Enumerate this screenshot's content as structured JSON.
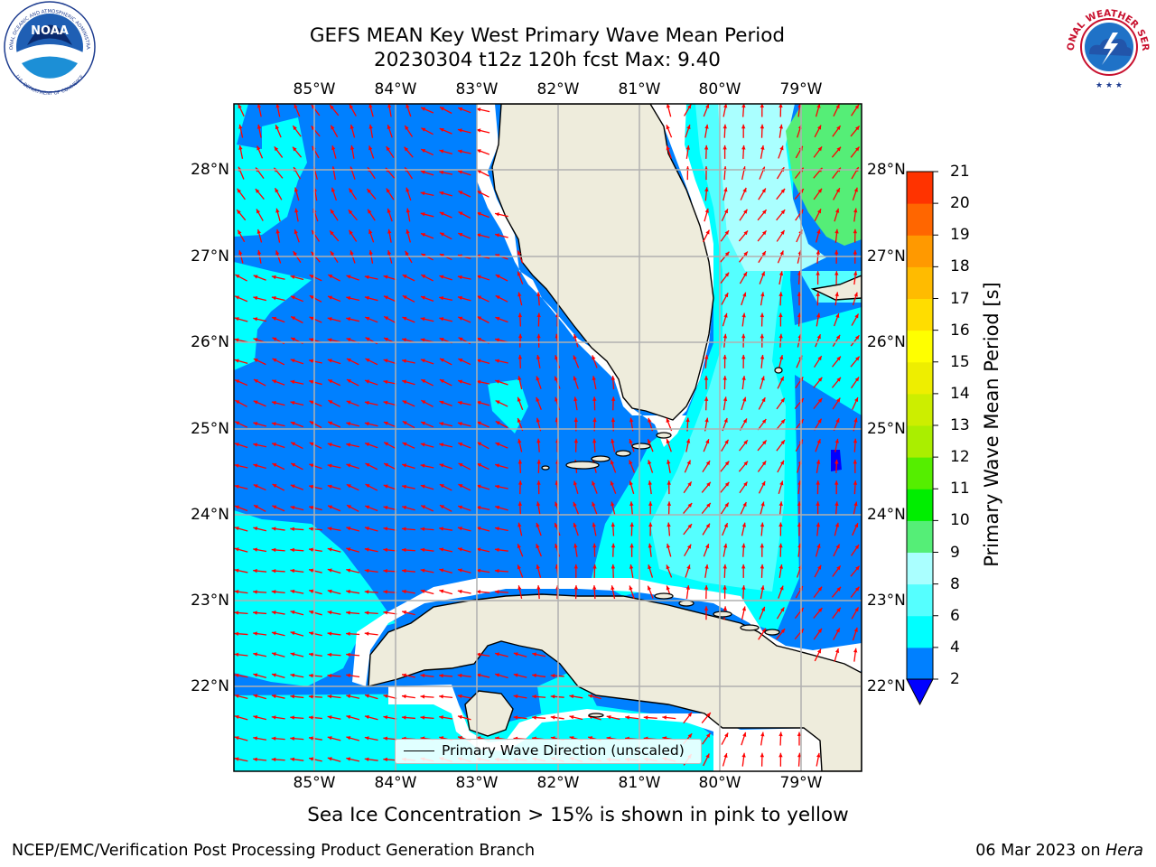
{
  "header": {
    "title_line1": "GEFS MEAN Key West Primary Wave Mean Period",
    "title_line2": "20230304 t12z 120h fcst   Max: 9.40"
  },
  "logos": {
    "noaa_text": "NOAA",
    "noaa_ring_top": "NATIONAL OCEANIC AND ATMOSPHERIC ADMINISTRATION",
    "noaa_ring_bottom": "U.S. DEPARTMENT OF COMMERCE",
    "nws_ring": "NATIONAL WEATHER SERVICE"
  },
  "map": {
    "lon_labels": [
      "85°W",
      "84°W",
      "83°W",
      "82°W",
      "81°W",
      "80°W",
      "79°W"
    ],
    "lat_labels": [
      "28°N",
      "27°N",
      "26°N",
      "25°N",
      "24°N",
      "23°N",
      "22°N"
    ],
    "colors": {
      "land": "#eeecdc",
      "period_2_4": "#0080ff",
      "period_4_6": "#00ffff",
      "period_6_8": "#55ffff",
      "period_8_9": "#aaffff",
      "period_9_10": "#55ee77",
      "arrows": "#ff0000",
      "grid": "#b0b0b0"
    },
    "legend": {
      "label": "Primary Wave Direction (unscaled)"
    }
  },
  "colorbar": {
    "title": "Primary Wave Mean Period [s]",
    "ticks": [
      "2",
      "4",
      "6",
      "8",
      "9",
      "10",
      "11",
      "12",
      "13",
      "14",
      "15",
      "16",
      "17",
      "18",
      "19",
      "20",
      "21"
    ],
    "colors": [
      "#0080ff",
      "#00ffff",
      "#55ffff",
      "#aaffff",
      "#55ee77",
      "#00ee00",
      "#55ee00",
      "#aaee00",
      "#ccee00",
      "#eeee00",
      "#ffff00",
      "#ffdd00",
      "#ffbb00",
      "#ff9900",
      "#ff6600",
      "#ff3300"
    ],
    "extend_color": "#0000ff"
  },
  "caption": "Sea Ice Concentration > 15% is shown in pink to yellow",
  "footer": {
    "left": "NCEP/EMC/Verification Post Processing Product Generation Branch",
    "right_prefix": "06 Mar 2023 on ",
    "right_host": "Hera"
  }
}
